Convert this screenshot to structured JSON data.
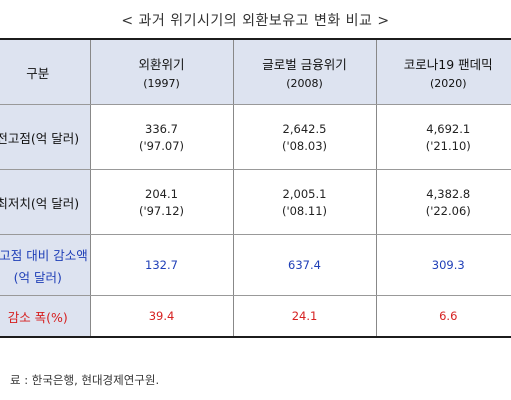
{
  "title": "< 과거 위기시기의 외환보유고 변화 비교 >",
  "table": {
    "header": {
      "category": "구분",
      "columns": [
        {
          "name": "외환위기",
          "year": "(1997)"
        },
        {
          "name": "글로벌 금융위기",
          "year": "(2008)"
        },
        {
          "name": "코로나19 팬데믹",
          "year": "(2020)"
        }
      ]
    },
    "rows": [
      {
        "label": "전고점(억 달러)",
        "cells": [
          {
            "value": "336.7",
            "date": "('97.07)"
          },
          {
            "value": "2,642.5",
            "date": "('08.03)"
          },
          {
            "value": "4,692.1",
            "date": "('21.10)"
          }
        ]
      },
      {
        "label": "최저치(억 달러)",
        "cells": [
          {
            "value": "204.1",
            "date": "('97.12)"
          },
          {
            "value": "2,005.1",
            "date": "('08.11)"
          },
          {
            "value": "4,382.8",
            "date": "('22.06)"
          }
        ]
      },
      {
        "label_line1": "전고점 대비 감소액",
        "label_line2": "(억 달러)",
        "cells": [
          "132.7",
          "637.4",
          "309.3"
        ]
      },
      {
        "label": "감소 폭(%)",
        "cells": [
          "39.4",
          "24.1",
          "6.6"
        ]
      }
    ]
  },
  "source": "료 : 한국은행, 현대경제연구원."
}
